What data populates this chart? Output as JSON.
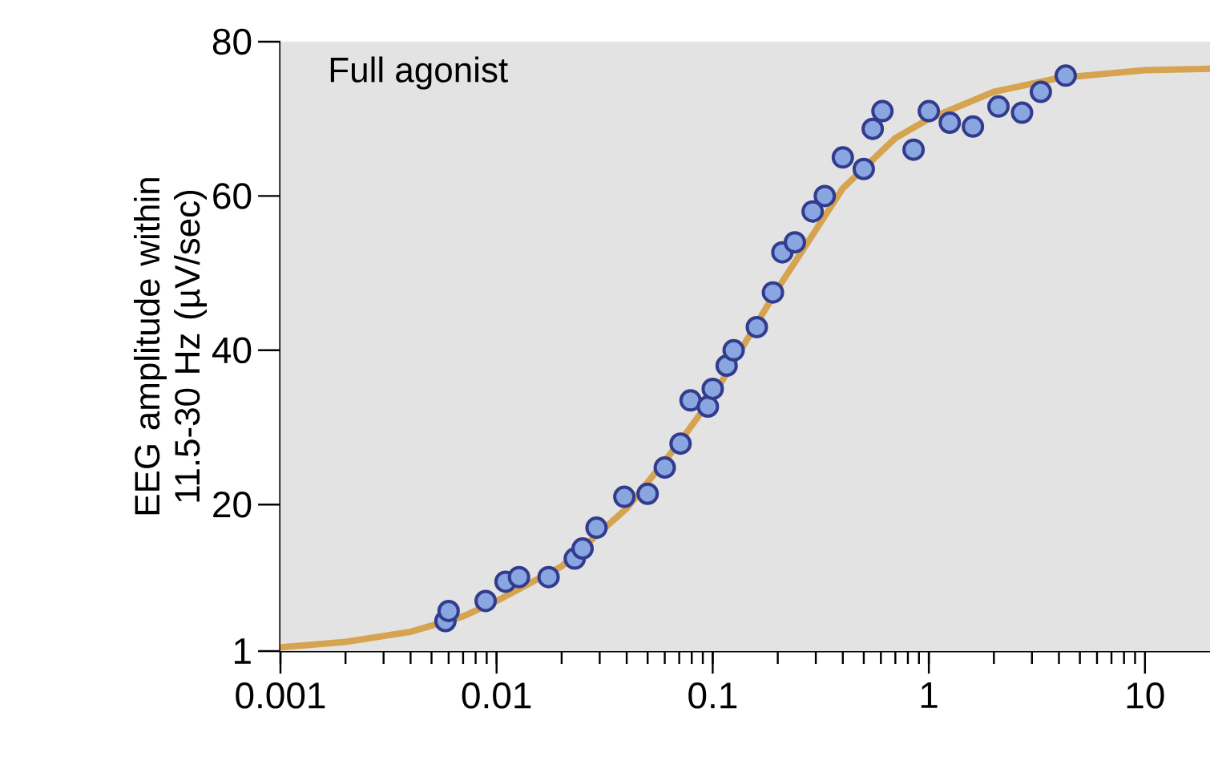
{
  "chart_data": {
    "type": "scatter",
    "ylabel": "EEG amplitude within 11.5-30 Hz (µV/sec)",
    "annotations": [
      "Full agonist"
    ],
    "xlim": [
      0.001,
      20
    ],
    "ylim": [
      1,
      80
    ],
    "xticks": [
      0.001,
      0.01,
      0.1,
      1,
      10
    ],
    "yticks": [
      1,
      20,
      40,
      60,
      80
    ],
    "log": "x",
    "grid": false,
    "series": [
      {
        "type": "line",
        "marker": "none",
        "color": "#d6a350",
        "x": [
          0.001,
          0.002,
          0.004,
          0.007,
          0.01,
          0.02,
          0.04,
          0.07,
          0.1,
          0.2,
          0.4,
          0.7,
          1,
          2,
          4,
          10,
          20
        ],
        "values": [
          1.5,
          2.2,
          3.5,
          5.5,
          7.5,
          12,
          19.5,
          28,
          34,
          48,
          61,
          67.5,
          70,
          73.5,
          75.3,
          76.3,
          76.5
        ]
      },
      {
        "marker": "circle",
        "color": "#8aa6e0",
        "x": [
          0.0058,
          0.006,
          0.0089,
          0.011,
          0.0127,
          0.0174,
          0.023,
          0.025,
          0.029,
          0.039,
          0.05,
          0.06,
          0.071,
          0.079,
          0.095,
          0.1,
          0.116,
          0.125,
          0.16,
          0.19,
          0.21,
          0.24,
          0.29,
          0.33,
          0.4,
          0.5,
          0.55,
          0.61,
          0.85,
          1.0,
          1.25,
          1.6,
          2.1,
          2.7,
          3.3,
          4.3
        ],
        "values": [
          4.9,
          6.2,
          7.5,
          10,
          10.6,
          10.6,
          13,
          14.3,
          17,
          21,
          21.4,
          24.8,
          27.9,
          33.5,
          32.7,
          35,
          38,
          40,
          43,
          47.5,
          52.7,
          54,
          58,
          60,
          65,
          63.5,
          68.7,
          71,
          66,
          71,
          69.5,
          69,
          71.6,
          70.8,
          73.5,
          75.6
        ]
      }
    ]
  }
}
